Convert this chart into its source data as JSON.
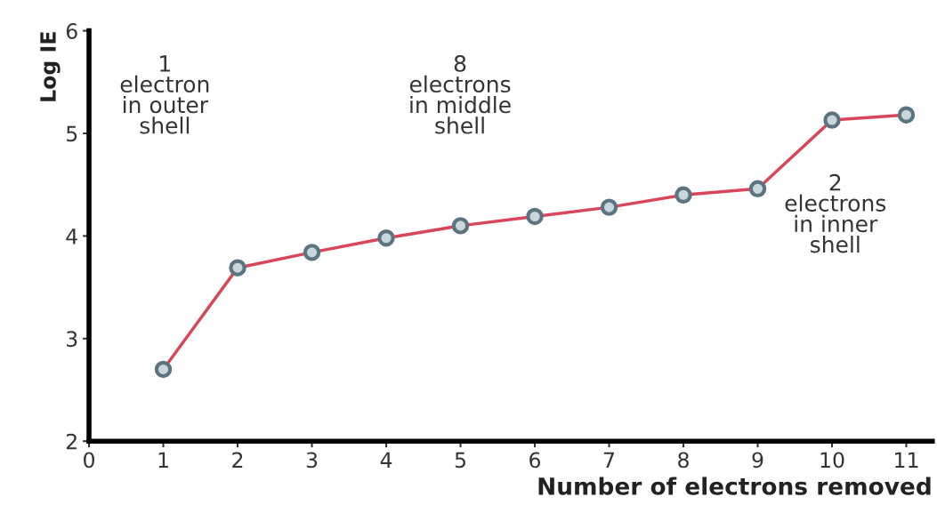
{
  "chart_data": {
    "type": "line",
    "xlabel": "Number of electrons removed",
    "ylabel": "Log IE",
    "x": [
      1,
      2,
      3,
      4,
      5,
      6,
      7,
      8,
      9,
      10,
      11
    ],
    "series": [
      {
        "color": "#d9455a",
        "values": [
          2.7,
          3.69,
          3.84,
          3.98,
          4.1,
          4.19,
          4.28,
          4.4,
          4.46,
          5.13,
          5.18
        ]
      }
    ],
    "xlim": [
      0,
      11.35
    ],
    "xticks": [
      0,
      1,
      2,
      3,
      4,
      5,
      6,
      7,
      8,
      9,
      10,
      11
    ],
    "ylim": [
      2,
      6
    ],
    "yticks": [
      2,
      3,
      4,
      5,
      6
    ],
    "marker": "circle",
    "line_style": "solid",
    "grid": false,
    "legend": false,
    "annotations": [
      "1\nelectron\nin outer\nshell",
      "8\nelectrons\nin middle\nshell",
      "2\nelectrons\nin inner\nshell"
    ]
  }
}
